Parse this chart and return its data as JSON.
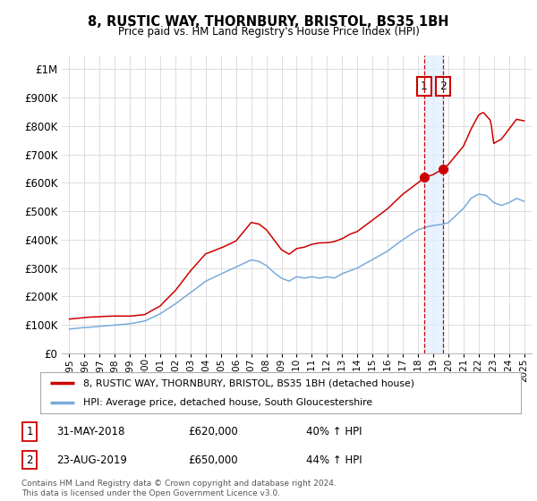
{
  "title": "8, RUSTIC WAY, THORNBURY, BRISTOL, BS35 1BH",
  "subtitle": "Price paid vs. HM Land Registry's House Price Index (HPI)",
  "red_label": "8, RUSTIC WAY, THORNBURY, BRISTOL, BS35 1BH (detached house)",
  "blue_label": "HPI: Average price, detached house, South Gloucestershire",
  "footnote": "Contains HM Land Registry data © Crown copyright and database right 2024.\nThis data is licensed under the Open Government Licence v3.0.",
  "transactions": [
    {
      "num": "1",
      "date": "31-MAY-2018",
      "price": "£620,000",
      "hpi": "40% ↑ HPI"
    },
    {
      "num": "2",
      "date": "23-AUG-2019",
      "price": "£650,000",
      "hpi": "44% ↑ HPI"
    }
  ],
  "sale1_year": 2018.42,
  "sale1_price": 620000,
  "sale2_year": 2019.65,
  "sale2_price": 650000,
  "red_color": "#cc0000",
  "blue_color": "#7aabdb",
  "marker_color": "#cc0000",
  "dashed_color": "#cc0000",
  "shade_color": "#ddeeff",
  "ylim": [
    0,
    1050000
  ],
  "xlim": [
    1994.5,
    2025.5
  ],
  "background_color": "#ffffff",
  "grid_color": "#dddddd"
}
